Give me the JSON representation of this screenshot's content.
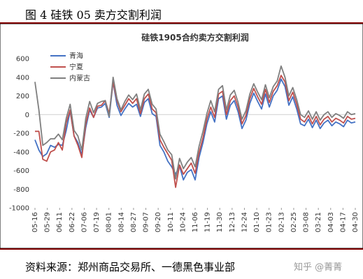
{
  "figure_caption": "图 4  硅铁 05 卖方交割利润",
  "source_note": "资料来源：郑州商品交易所、一德黑色事业部",
  "watermark": "知乎 @菁菁",
  "colors": {
    "rule": "#7f0000",
    "qinghai": "#4472C4",
    "ningxia": "#C0504D",
    "neimenggu": "#7F7F7F"
  },
  "chart_data": {
    "type": "line",
    "title": "硅铁1905合约卖方交割利润",
    "xlabel": "",
    "ylabel": "",
    "ylim": [
      -1000,
      600
    ],
    "yticks": [
      600,
      400,
      200,
      0,
      -200,
      -400,
      -600,
      -800,
      -1000
    ],
    "grid": false,
    "legend_position": "top-left",
    "xticks": [
      "05-16",
      "05-29",
      "06-11",
      "06-22",
      "07-06",
      "07-19",
      "08-01",
      "08-14",
      "08-27",
      "09-07",
      "09-20",
      "10-11",
      "10-24",
      "11-06",
      "11-19",
      "11-30",
      "12-13",
      "12-24",
      "01-10",
      "01-23",
      "02-13",
      "02-25",
      "03-08",
      "03-21",
      "04-03",
      "04-17",
      "04-30"
    ],
    "x": [
      0,
      1,
      2,
      3,
      4,
      5,
      6,
      7,
      8,
      9,
      10,
      11,
      12,
      13,
      14,
      15,
      16,
      17,
      18,
      19,
      20,
      21,
      22,
      23,
      24,
      25,
      26,
      27,
      28,
      29,
      30,
      31,
      32,
      33,
      34,
      35,
      36,
      37,
      38,
      39,
      40,
      41,
      42,
      43,
      44,
      45,
      46,
      47,
      48,
      49,
      50,
      51,
      52
    ],
    "series": [
      {
        "name": "青海",
        "values": [
          -270,
          -380,
          -450,
          -420,
          -330,
          -350,
          -320,
          -330,
          -170,
          40,
          -230,
          -300,
          -430,
          -140,
          50,
          -30,
          70,
          80,
          120,
          -30,
          350,
          100,
          -10,
          60,
          120,
          80,
          110,
          -20,
          130,
          170,
          10,
          -20,
          -330,
          -400,
          -500,
          -560,
          -640,
          -550,
          -700,
          -620,
          -590,
          -700,
          -460,
          -300,
          -100,
          30,
          -80,
          170,
          200,
          -50,
          100,
          150,
          30
        ]
      },
      {
        "name": "宁夏",
        "values": [
          -180,
          -180,
          -480,
          -500,
          -400,
          -380,
          -300,
          -380,
          -90,
          50,
          -230,
          -330,
          -460,
          -100,
          70,
          -30,
          90,
          100,
          150,
          10,
          350,
          150,
          30,
          100,
          170,
          120,
          170,
          10,
          170,
          220,
          60,
          20,
          -270,
          -350,
          -420,
          -490,
          -780,
          -540,
          -640,
          -580,
          -520,
          -630,
          -410,
          -250,
          -50,
          80,
          -30,
          220,
          250,
          0,
          150,
          200,
          80
        ]
      },
      {
        "name": "内蒙古",
        "values": [
          350,
          50,
          -330,
          -300,
          -260,
          -260,
          -210,
          -270,
          -40,
          110,
          -170,
          -230,
          -380,
          -40,
          140,
          20,
          120,
          140,
          150,
          -20,
          400,
          170,
          50,
          140,
          210,
          160,
          220,
          50,
          220,
          270,
          110,
          60,
          -210,
          -290,
          -380,
          -430,
          -690,
          -470,
          -580,
          -510,
          -460,
          -560,
          -340,
          -180,
          10,
          150,
          30,
          270,
          310,
          50,
          210,
          260,
          130
        ]
      }
    ],
    "series_full": [
      {
        "name": "青海",
        "values": [
          -270,
          -380,
          -450,
          -420,
          -330,
          -350,
          -320,
          -330,
          -170,
          40,
          -230,
          -300,
          -430,
          -140,
          50,
          -30,
          70,
          80,
          120,
          -30,
          350,
          100,
          -10,
          60,
          120,
          80,
          110,
          -20,
          130,
          170,
          10,
          -20,
          -330,
          -400,
          -500,
          -560,
          -640,
          -550,
          -700,
          -620,
          -590,
          -700,
          -460,
          -300,
          -100,
          30,
          -80,
          170,
          200,
          -50,
          100,
          150,
          30,
          -150,
          -60,
          120,
          230,
          140,
          60,
          220,
          80,
          200,
          260,
          380,
          300,
          100,
          190,
          60,
          -100,
          -120,
          -50,
          -140,
          -60,
          -150,
          -90,
          -60,
          -120,
          -80,
          -100,
          -130,
          -60,
          -90,
          -80
        ]
      },
      {
        "name": "宁夏",
        "values": [
          -180,
          -180,
          -480,
          -500,
          -400,
          -380,
          -300,
          -380,
          -90,
          50,
          -230,
          -330,
          -460,
          -100,
          70,
          -30,
          90,
          100,
          150,
          10,
          350,
          150,
          30,
          100,
          170,
          120,
          170,
          10,
          170,
          220,
          60,
          20,
          -270,
          -350,
          -420,
          -490,
          -780,
          -540,
          -640,
          -580,
          -520,
          -630,
          -410,
          -250,
          -50,
          80,
          -30,
          220,
          250,
          0,
          150,
          200,
          80,
          -100,
          -10,
          170,
          280,
          190,
          110,
          270,
          130,
          250,
          310,
          420,
          350,
          150,
          240,
          110,
          -50,
          -80,
          -10,
          -100,
          -20,
          -110,
          -50,
          -20,
          -80,
          -40,
          -60,
          -90,
          -20,
          -50,
          -40
        ]
      },
      {
        "name": "内蒙古",
        "values": [
          350,
          50,
          -330,
          -300,
          -260,
          -260,
          -210,
          -270,
          -40,
          110,
          -170,
          -230,
          -380,
          -40,
          140,
          20,
          120,
          140,
          150,
          -20,
          400,
          170,
          50,
          140,
          210,
          160,
          220,
          50,
          220,
          270,
          110,
          60,
          -210,
          -290,
          -380,
          -430,
          -690,
          -470,
          -580,
          -510,
          -460,
          -560,
          -340,
          -180,
          10,
          150,
          30,
          270,
          310,
          50,
          210,
          260,
          130,
          -50,
          40,
          220,
          330,
          240,
          160,
          320,
          180,
          300,
          360,
          520,
          400,
          200,
          290,
          160,
          0,
          -30,
          40,
          -50,
          30,
          -60,
          0,
          30,
          -30,
          10,
          -10,
          -40,
          30,
          0,
          10
        ]
      }
    ]
  }
}
